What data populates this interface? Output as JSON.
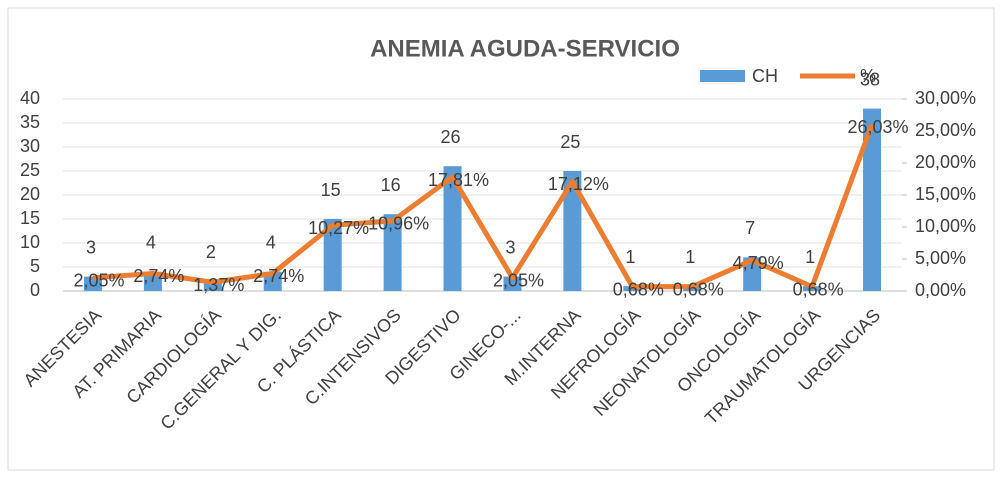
{
  "chart_data": {
    "type": "bar",
    "title": "ANEMIA AGUDA-SERVICIO",
    "categories": [
      "ANESTESIA",
      "AT. PRIMARIA",
      "CARDIOLOGÍA",
      "C.GENERAL Y DIG.",
      "C. PLÁSTICA",
      "C.INTENSIVOS",
      "DIGESTIVO",
      "GINECO-...",
      "M.INTERNA",
      "NEFROLOGÍA",
      "NEONATOLOGÍA",
      "ONCOLOGÍA",
      "TRAUMATOLOGÍA",
      "URGENCIAS"
    ],
    "series": [
      {
        "name": "CH",
        "type": "bar",
        "color": "#5b9bd5",
        "values": [
          3,
          4,
          2,
          4,
          15,
          16,
          26,
          3,
          25,
          1,
          1,
          7,
          1,
          38
        ]
      },
      {
        "name": "%",
        "type": "line",
        "axis": "y2",
        "color": "#ed7d31",
        "values": [
          2.05,
          2.74,
          1.37,
          2.74,
          10.27,
          10.96,
          17.81,
          2.05,
          17.12,
          0.68,
          0.68,
          4.79,
          0.68,
          26.03
        ],
        "value_labels": [
          "2,05%",
          "2,74%",
          "1,37%",
          "2,74%",
          "10,27%",
          "10,96%",
          "17,81%",
          "2,05%",
          "17,12%",
          "0,68%",
          "0,68%",
          "4,79%",
          "0,68%",
          "26,03%"
        ]
      }
    ],
    "ylim": [
      0,
      40
    ],
    "yticks": [
      0,
      5,
      10,
      15,
      20,
      25,
      30,
      35,
      40
    ],
    "y2lim": [
      0,
      30
    ],
    "y2ticks": [
      {
        "value": 0,
        "label": "0,00%"
      },
      {
        "value": 5,
        "label": "5,00%"
      },
      {
        "value": 10,
        "label": "10,00%"
      },
      {
        "value": 15,
        "label": "15,00%"
      },
      {
        "value": 20,
        "label": "20,00%"
      },
      {
        "value": 25,
        "label": "25,00%"
      },
      {
        "value": 30,
        "label": "30,00%"
      }
    ],
    "grid": true,
    "legend": "top-right"
  }
}
